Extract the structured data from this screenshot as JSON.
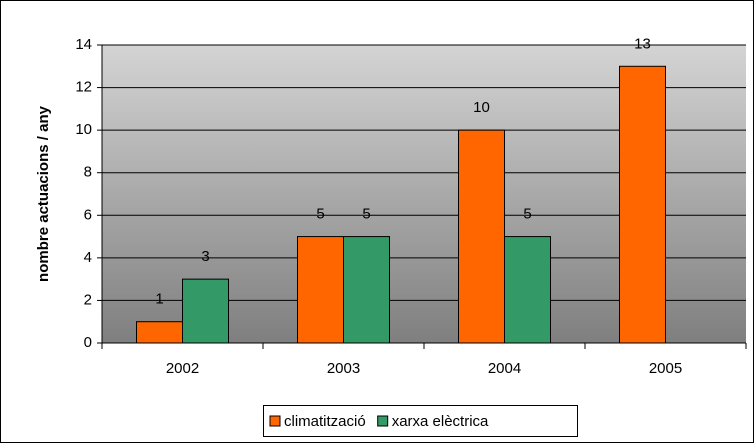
{
  "chart_data": {
    "type": "bar",
    "ylabel": "nombre actuacions / any",
    "categories": [
      "2002",
      "2003",
      "2004",
      "2005"
    ],
    "series": [
      {
        "name": "climatització",
        "color": "#ff6600",
        "values": [
          1,
          5,
          10,
          13
        ]
      },
      {
        "name": "xarxa elèctrica",
        "color": "#339966",
        "values": [
          3,
          5,
          5,
          null
        ]
      }
    ],
    "ylim": [
      0,
      14
    ],
    "yticks": [
      0,
      2,
      4,
      6,
      8,
      10,
      12,
      14
    ],
    "grid": true,
    "legend": "bottom"
  }
}
